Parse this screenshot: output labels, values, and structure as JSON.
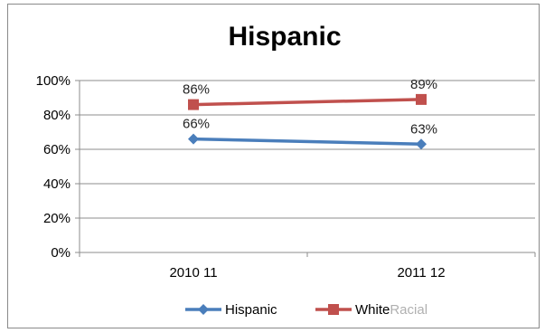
{
  "chart_data": {
    "type": "line",
    "title": "Hispanic",
    "xlabel": "",
    "ylabel": "",
    "categories": [
      "2010 11",
      "2011 12"
    ],
    "ylim": [
      0,
      100
    ],
    "y_ticks": [
      "0%",
      "20%",
      "40%",
      "60%",
      "80%",
      "100%"
    ],
    "grid": true,
    "legend_position": "bottom",
    "series": [
      {
        "name": "Hispanic",
        "values": [
          66,
          63
        ],
        "labels": [
          "66%",
          "63%"
        ],
        "color": "#4a7ebb",
        "marker": "diamond"
      },
      {
        "name": "White",
        "name_suffix": "Racial",
        "values": [
          86,
          89
        ],
        "labels": [
          "86%",
          "89%"
        ],
        "color": "#c0504d",
        "marker": "square"
      }
    ]
  }
}
